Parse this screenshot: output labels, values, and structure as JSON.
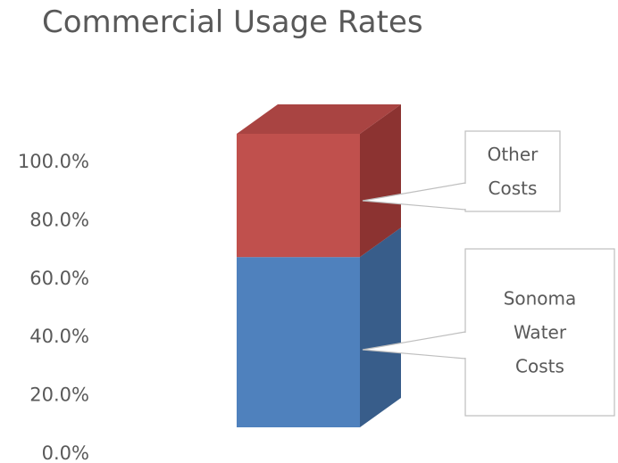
{
  "chart_data": {
    "type": "bar",
    "title": "Commercial Usage Rates",
    "categories": [
      ""
    ],
    "stacked": true,
    "three_d": true,
    "series": [
      {
        "name": "Sonoma Water Costs",
        "label_lines": [
          "Sonoma",
          "Water",
          "Costs"
        ],
        "values": [
          58
        ],
        "color": "#4f81bd",
        "side_color": "#385d8a",
        "top_color": "#6e98cc"
      },
      {
        "name": "Other Costs",
        "label_lines": [
          "Other",
          "Costs"
        ],
        "values": [
          42
        ],
        "color": "#c0504d",
        "side_color": "#8c3331",
        "top_color": "#a94442"
      }
    ],
    "yticks": [
      "0.0%",
      "20.0%",
      "40.0%",
      "60.0%",
      "80.0%",
      "100.0%"
    ],
    "ylim": [
      0,
      100
    ],
    "legend": "callouts",
    "grid": false
  }
}
